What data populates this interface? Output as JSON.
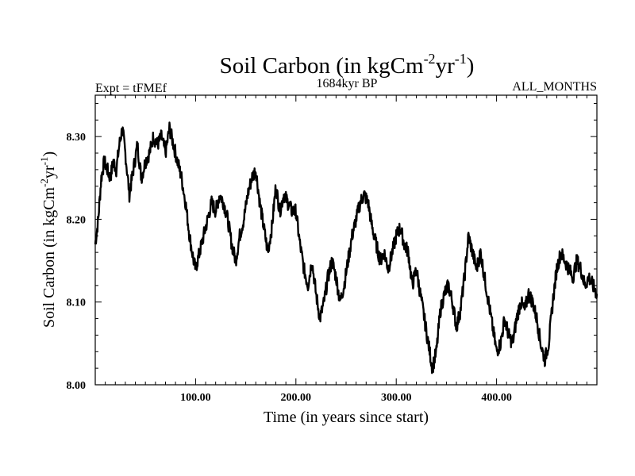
{
  "chart_data": {
    "type": "line",
    "title": "Soil Carbon (in kgCm",
    "title_sup1": "-2",
    "title_mid": "yr",
    "title_sup2": "-1",
    "title_end": ")",
    "subtitle_left": "Expt = tFMEf",
    "subtitle_center": "1684kyr BP",
    "subtitle_right": "ALL_MONTHS",
    "xlabel": "Time (in years since start)",
    "ylabel": "Soil Carbon (in kgCm",
    "ylabel_sup1": "-2",
    "ylabel_mid": "yr",
    "ylabel_sup2": "-1",
    "ylabel_end": ")",
    "xlim": [
      0,
      500
    ],
    "ylim": [
      8.0,
      8.35
    ],
    "xticks": [
      100,
      200,
      300,
      400
    ],
    "xtick_labels": [
      "100.00",
      "200.00",
      "300.00",
      "400.00"
    ],
    "yticks": [
      8.0,
      8.1,
      8.2,
      8.3
    ],
    "ytick_labels": [
      "8.00",
      "8.10",
      "8.20",
      "8.30"
    ],
    "series": [
      {
        "name": "Soil Carbon",
        "color": "#000000",
        "x": [
          0,
          3,
          6,
          9,
          12,
          15,
          18,
          21,
          24,
          27,
          30,
          34,
          38,
          42,
          46,
          50,
          54,
          58,
          62,
          66,
          70,
          74,
          78,
          82,
          86,
          90,
          94,
          98,
          100,
          104,
          108,
          112,
          116,
          120,
          124,
          128,
          132,
          136,
          140,
          144,
          148,
          152,
          156,
          160,
          164,
          168,
          172,
          176,
          180,
          184,
          188,
          192,
          196,
          200,
          204,
          208,
          212,
          216,
          220,
          224,
          228,
          232,
          236,
          240,
          244,
          248,
          252,
          256,
          260,
          264,
          268,
          272,
          276,
          280,
          284,
          288,
          292,
          296,
          300,
          304,
          308,
          312,
          316,
          320,
          324,
          328,
          332,
          336,
          340,
          344,
          348,
          352,
          356,
          360,
          364,
          368,
          372,
          376,
          380,
          384,
          388,
          392,
          396,
          400,
          404,
          408,
          412,
          416,
          420,
          424,
          428,
          432,
          436,
          440,
          444,
          448,
          452,
          456,
          460,
          464,
          468,
          472,
          476,
          480,
          484,
          488,
          492,
          496,
          500
        ],
        "values": [
          8.17,
          8.2,
          8.25,
          8.27,
          8.26,
          8.25,
          8.27,
          8.26,
          8.29,
          8.31,
          8.28,
          8.23,
          8.26,
          8.29,
          8.25,
          8.27,
          8.28,
          8.3,
          8.29,
          8.3,
          8.28,
          8.31,
          8.29,
          8.27,
          8.25,
          8.22,
          8.18,
          8.15,
          8.14,
          8.16,
          8.18,
          8.2,
          8.22,
          8.21,
          8.23,
          8.22,
          8.2,
          8.17,
          8.15,
          8.18,
          8.2,
          8.23,
          8.25,
          8.26,
          8.22,
          8.19,
          8.16,
          8.19,
          8.24,
          8.21,
          8.23,
          8.22,
          8.21,
          8.21,
          8.17,
          8.14,
          8.12,
          8.15,
          8.11,
          8.08,
          8.1,
          8.13,
          8.15,
          8.13,
          8.1,
          8.12,
          8.15,
          8.18,
          8.2,
          8.22,
          8.23,
          8.22,
          8.19,
          8.17,
          8.15,
          8.16,
          8.14,
          8.16,
          8.18,
          8.19,
          8.17,
          8.16,
          8.12,
          8.14,
          8.11,
          8.08,
          8.05,
          8.02,
          8.04,
          8.09,
          8.11,
          8.12,
          8.1,
          8.07,
          8.09,
          8.13,
          8.18,
          8.16,
          8.14,
          8.16,
          8.13,
          8.1,
          8.07,
          8.04,
          8.05,
          8.08,
          8.06,
          8.05,
          8.08,
          8.1,
          8.09,
          8.11,
          8.1,
          8.08,
          8.05,
          8.03,
          8.05,
          8.1,
          8.14,
          8.16,
          8.15,
          8.14,
          8.13,
          8.15,
          8.14,
          8.12,
          8.13,
          8.12,
          8.11
        ]
      }
    ]
  }
}
